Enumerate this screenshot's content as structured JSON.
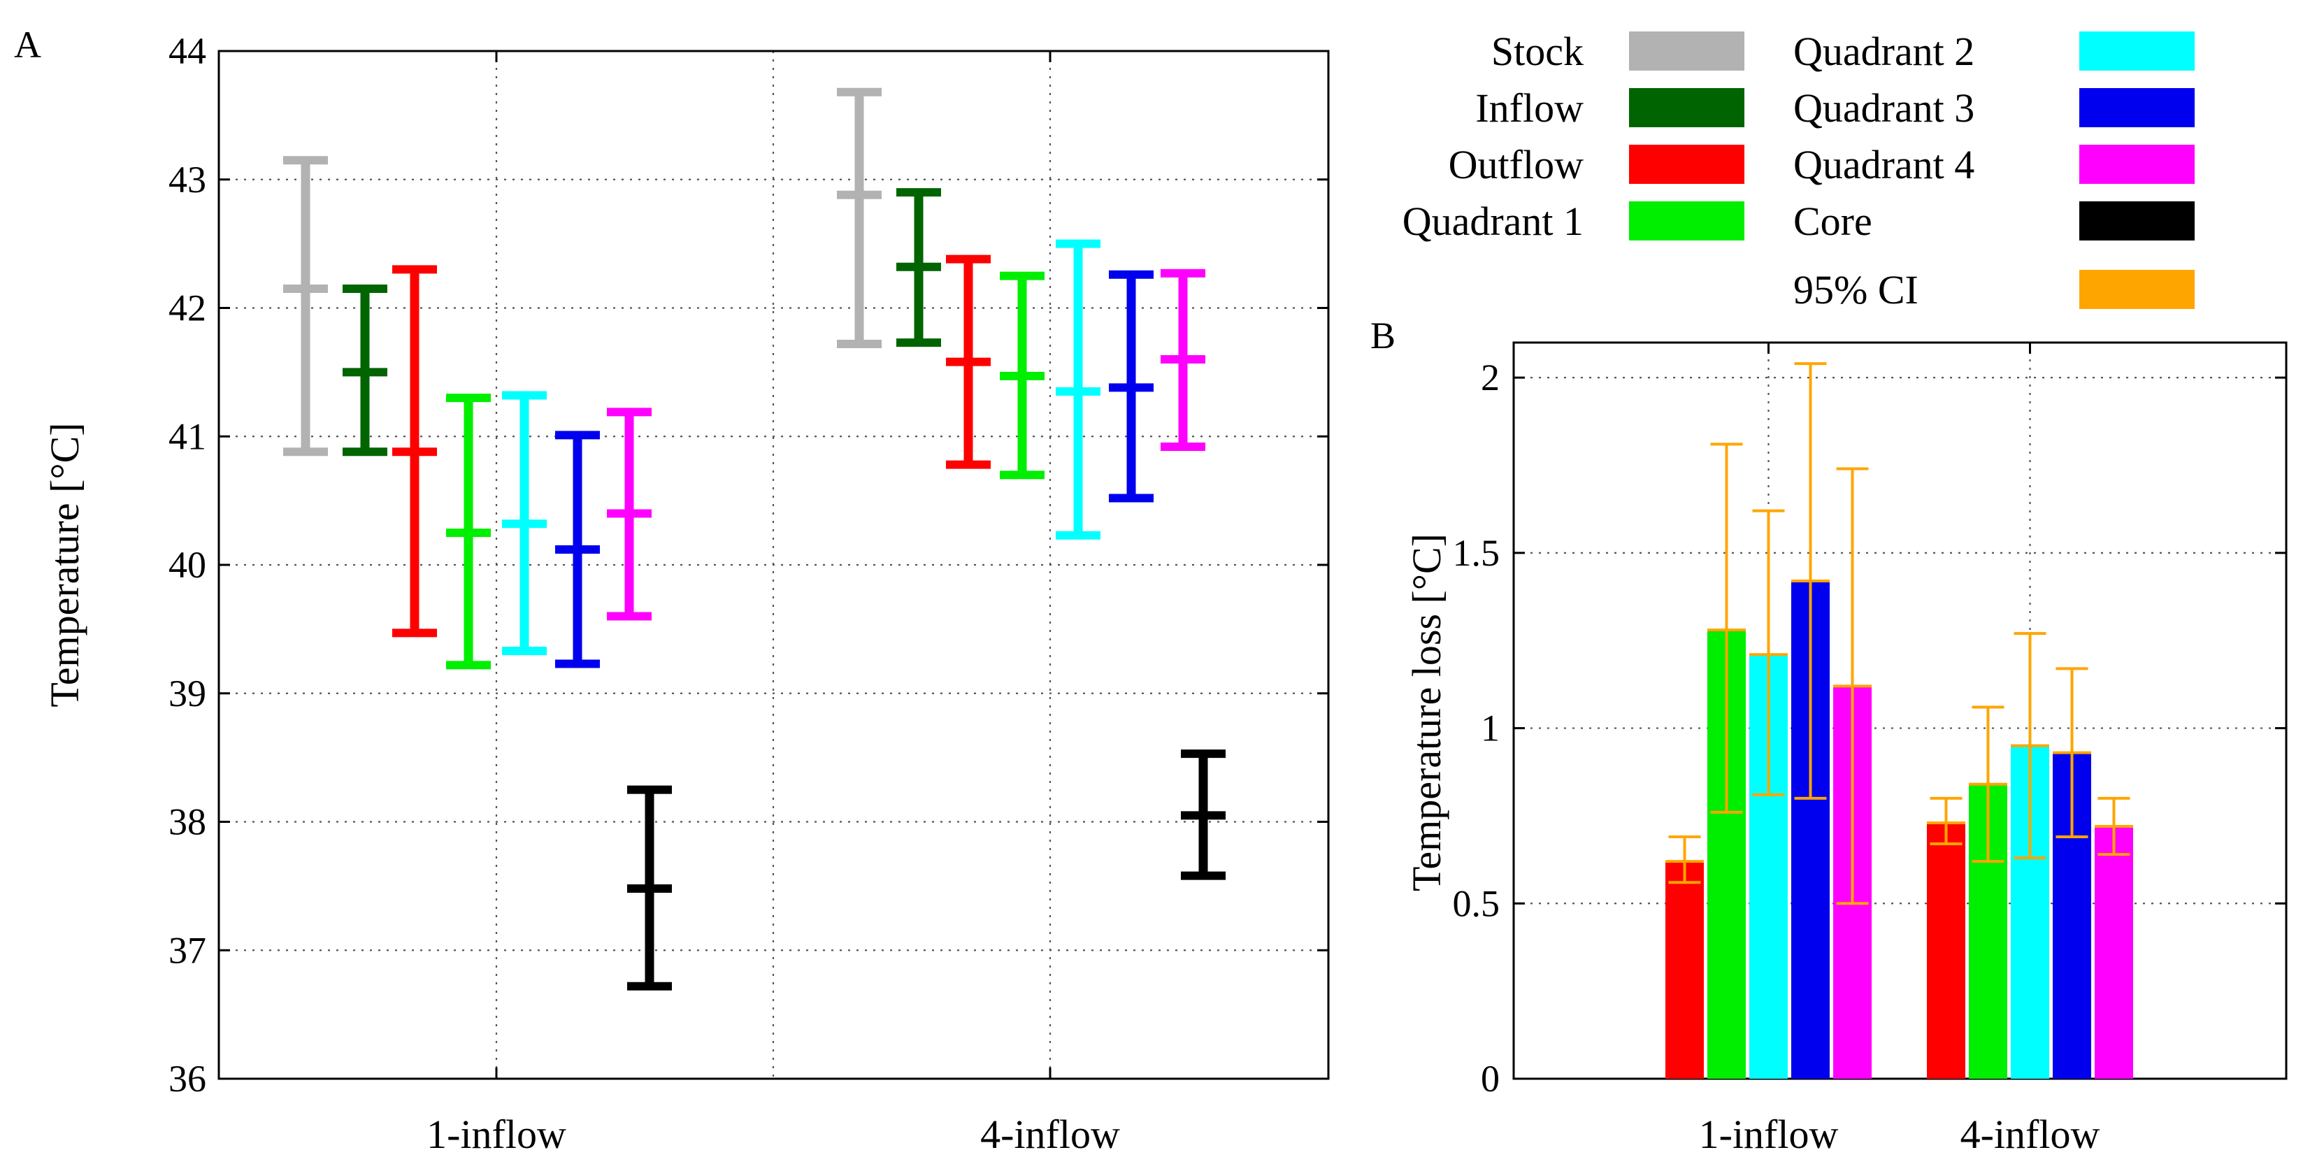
{
  "colors": {
    "stock": "#b2b2b2",
    "inflow": "#006400",
    "outflow": "#ff0000",
    "quadrant1": "#00ee00",
    "quadrant2": "#00ffff",
    "quadrant3": "#0000ee",
    "quadrant4": "#ff00ff",
    "core": "#000000",
    "ci": "#ffa500"
  },
  "legend": [
    {
      "label": "Stock",
      "color_key": "stock"
    },
    {
      "label": "Inflow",
      "color_key": "inflow"
    },
    {
      "label": "Outflow",
      "color_key": "outflow"
    },
    {
      "label": "Quadrant 1",
      "color_key": "quadrant1"
    },
    {
      "label": "Quadrant 2",
      "color_key": "quadrant2"
    },
    {
      "label": "Quadrant 3",
      "color_key": "quadrant3"
    },
    {
      "label": "Quadrant 4",
      "color_key": "quadrant4"
    },
    {
      "label": "Core",
      "color_key": "core"
    },
    {
      "label": "95% CI",
      "color_key": "ci"
    }
  ],
  "chart_data": [
    {
      "panel": "A",
      "type": "errorbar",
      "title": "",
      "xlabel": "",
      "ylabel": "Temperature [°C]",
      "ylim": [
        36,
        44
      ],
      "yticks": [
        36,
        37,
        38,
        39,
        40,
        41,
        42,
        43,
        44
      ],
      "categories": [
        "1-inflow",
        "4-inflow"
      ],
      "grid": true,
      "series": [
        {
          "name": "Stock",
          "color_key": "stock",
          "values": [
            {
              "mean": 42.15,
              "low": 40.88,
              "high": 43.15
            },
            {
              "mean": 42.88,
              "low": 41.72,
              "high": 43.68
            }
          ]
        },
        {
          "name": "Inflow",
          "color_key": "inflow",
          "values": [
            {
              "mean": 41.5,
              "low": 40.88,
              "high": 42.15
            },
            {
              "mean": 42.32,
              "low": 41.73,
              "high": 42.9
            }
          ]
        },
        {
          "name": "Outflow",
          "color_key": "outflow",
          "values": [
            {
              "mean": 40.88,
              "low": 39.47,
              "high": 42.3
            },
            {
              "mean": 41.58,
              "low": 40.78,
              "high": 42.38
            }
          ]
        },
        {
          "name": "Quadrant 1",
          "color_key": "quadrant1",
          "values": [
            {
              "mean": 40.25,
              "low": 39.22,
              "high": 41.3
            },
            {
              "mean": 41.47,
              "low": 40.7,
              "high": 42.25
            }
          ]
        },
        {
          "name": "Quadrant 2",
          "color_key": "quadrant2",
          "values": [
            {
              "mean": 40.32,
              "low": 39.33,
              "high": 41.32
            },
            {
              "mean": 41.35,
              "low": 40.23,
              "high": 42.5
            }
          ]
        },
        {
          "name": "Quadrant 3",
          "color_key": "quadrant3",
          "values": [
            {
              "mean": 40.12,
              "low": 39.23,
              "high": 41.01
            },
            {
              "mean": 41.38,
              "low": 40.52,
              "high": 42.26
            }
          ]
        },
        {
          "name": "Quadrant 4",
          "color_key": "quadrant4",
          "values": [
            {
              "mean": 40.4,
              "low": 39.6,
              "high": 41.19
            },
            {
              "mean": 41.6,
              "low": 40.92,
              "high": 42.27
            }
          ]
        },
        {
          "name": "Core",
          "color_key": "core",
          "values": [
            {
              "mean": 37.48,
              "low": 36.72,
              "high": 38.25
            },
            {
              "mean": 38.05,
              "low": 37.58,
              "high": 38.53
            }
          ]
        }
      ]
    },
    {
      "panel": "B",
      "type": "bar",
      "title": "",
      "xlabel": "",
      "ylabel": "Temperature loss [°C]",
      "ylim": [
        0,
        2.1
      ],
      "yticks": [
        0,
        0.5,
        1,
        1.5,
        2
      ],
      "ytick_labels": [
        "0",
        "0.5",
        "1",
        "1.5",
        "2"
      ],
      "categories": [
        "1-inflow",
        "4-inflow"
      ],
      "grid": true,
      "series": [
        {
          "name": "Outflow",
          "color_key": "outflow",
          "values": [
            {
              "value": 0.62,
              "ci_low": 0.56,
              "ci_high": 0.69
            },
            {
              "value": 0.73,
              "ci_low": 0.67,
              "ci_high": 0.8
            }
          ]
        },
        {
          "name": "Quadrant 1",
          "color_key": "quadrant1",
          "values": [
            {
              "value": 1.28,
              "ci_low": 0.76,
              "ci_high": 1.81
            },
            {
              "value": 0.84,
              "ci_low": 0.62,
              "ci_high": 1.06
            }
          ]
        },
        {
          "name": "Quadrant 2",
          "color_key": "quadrant2",
          "values": [
            {
              "value": 1.21,
              "ci_low": 0.81,
              "ci_high": 1.62
            },
            {
              "value": 0.95,
              "ci_low": 0.63,
              "ci_high": 1.27
            }
          ]
        },
        {
          "name": "Quadrant 3",
          "color_key": "quadrant3",
          "values": [
            {
              "value": 1.42,
              "ci_low": 0.8,
              "ci_high": 2.04
            },
            {
              "value": 0.93,
              "ci_low": 0.69,
              "ci_high": 1.17
            }
          ]
        },
        {
          "name": "Quadrant 4",
          "color_key": "quadrant4",
          "values": [
            {
              "value": 1.12,
              "ci_low": 0.5,
              "ci_high": 1.74
            },
            {
              "value": 0.72,
              "ci_low": 0.64,
              "ci_high": 0.8
            }
          ]
        }
      ]
    }
  ]
}
